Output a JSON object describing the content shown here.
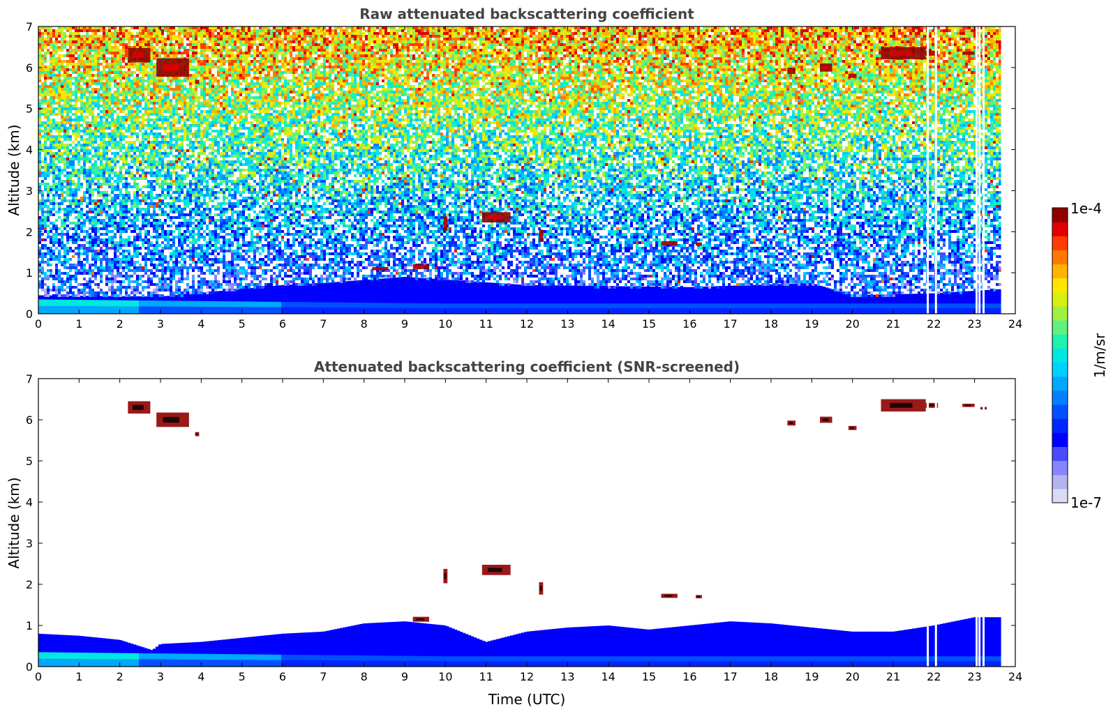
{
  "colorbar": {
    "label": "1/m/sr",
    "max_label": "1e-4",
    "min_label": "1e-7",
    "colors": [
      "#dadaf6",
      "#b3b3ee",
      "#8686ff",
      "#4a4aff",
      "#0000ff",
      "#0026ff",
      "#0050ff",
      "#0080ff",
      "#00a8ff",
      "#00d0ff",
      "#00e8e0",
      "#20f0b0",
      "#60f080",
      "#a0f040",
      "#d8f010",
      "#ffe600",
      "#ffb400",
      "#ff7800",
      "#ff3c00",
      "#e00000",
      "#900000"
    ]
  },
  "chart_data": [
    {
      "type": "heatmap",
      "title": "Raw attenuated backscattering coefficient",
      "xlabel": "",
      "ylabel": "Altitude (km)",
      "xlim": [
        0,
        24
      ],
      "ylim": [
        0,
        7
      ],
      "xticks": [
        "0",
        "1",
        "2",
        "3",
        "4",
        "5",
        "6",
        "7",
        "8",
        "9",
        "10",
        "11",
        "12",
        "13",
        "14",
        "15",
        "16",
        "17",
        "18",
        "19",
        "20",
        "21",
        "22",
        "23",
        "24"
      ],
      "yticks": [
        "0",
        "1",
        "2",
        "3",
        "4",
        "5",
        "6",
        "7"
      ],
      "data_end_time": 23.65,
      "boundary_layer_top_km": [
        [
          0,
          0.45
        ],
        [
          3,
          0.42
        ],
        [
          6,
          0.7
        ],
        [
          7,
          0.75
        ],
        [
          9,
          0.9
        ],
        [
          12,
          0.7
        ],
        [
          16,
          0.65
        ],
        [
          19,
          0.75
        ],
        [
          20,
          0.45
        ],
        [
          22,
          0.5
        ],
        [
          23.65,
          0.6
        ]
      ],
      "cloud_layers": [
        {
          "t0": 2.2,
          "t1": 2.75,
          "alt": 6.3,
          "thick": 0.35
        },
        {
          "t0": 2.9,
          "t1": 3.7,
          "alt": 6.0,
          "thick": 0.45
        },
        {
          "t0": 3.85,
          "t1": 3.95,
          "alt": 5.65,
          "thick": 0.1
        },
        {
          "t0": 8.2,
          "t1": 8.6,
          "alt": 1.1,
          "thick": 0.08
        },
        {
          "t0": 9.2,
          "t1": 9.6,
          "alt": 1.15,
          "thick": 0.12
        },
        {
          "t0": 9.95,
          "t1": 10.05,
          "alt": 2.2,
          "thick": 0.35
        },
        {
          "t0": 10.9,
          "t1": 11.6,
          "alt": 2.35,
          "thick": 0.25
        },
        {
          "t0": 12.3,
          "t1": 12.4,
          "alt": 1.9,
          "thick": 0.3
        },
        {
          "t0": 15.3,
          "t1": 15.7,
          "alt": 1.72,
          "thick": 0.1
        },
        {
          "t0": 16.15,
          "t1": 16.3,
          "alt": 1.7,
          "thick": 0.08
        },
        {
          "t0": 18.4,
          "t1": 18.6,
          "alt": 5.92,
          "thick": 0.15
        },
        {
          "t0": 19.2,
          "t1": 19.5,
          "alt": 6.0,
          "thick": 0.2
        },
        {
          "t0": 19.9,
          "t1": 20.1,
          "alt": 5.8,
          "thick": 0.1
        },
        {
          "t0": 20.7,
          "t1": 21.8,
          "alt": 6.35,
          "thick": 0.3
        },
        {
          "t0": 21.8,
          "t1": 22.1,
          "alt": 6.35,
          "thick": 0.12
        },
        {
          "t0": 22.7,
          "t1": 23.0,
          "alt": 6.35,
          "thick": 0.08
        },
        {
          "t0": 23.1,
          "t1": 23.3,
          "alt": 6.28,
          "thick": 0.06
        }
      ],
      "gaps": [
        21.85,
        22.05,
        23.05,
        23.12,
        23.22
      ]
    },
    {
      "type": "heatmap",
      "title": "Attenuated backscattering coefficient (SNR-screened)",
      "xlabel": "Time (UTC)",
      "ylabel": "Altitude (km)",
      "xlim": [
        0,
        24
      ],
      "ylim": [
        0,
        7
      ],
      "xticks": [
        "0",
        "1",
        "2",
        "3",
        "4",
        "5",
        "6",
        "7",
        "8",
        "9",
        "10",
        "11",
        "12",
        "13",
        "14",
        "15",
        "16",
        "17",
        "18",
        "19",
        "20",
        "21",
        "22",
        "23",
        "24"
      ],
      "yticks": [
        "0",
        "1",
        "2",
        "3",
        "4",
        "5",
        "6",
        "7"
      ],
      "data_end_time": 23.65,
      "screened_top_km": [
        [
          0,
          0.8
        ],
        [
          1,
          0.75
        ],
        [
          2,
          0.65
        ],
        [
          2.8,
          0.4
        ],
        [
          3,
          0.55
        ],
        [
          4,
          0.6
        ],
        [
          5,
          0.7
        ],
        [
          6,
          0.8
        ],
        [
          7,
          0.85
        ],
        [
          8,
          1.05
        ],
        [
          9,
          1.1
        ],
        [
          10,
          1.0
        ],
        [
          11,
          0.6
        ],
        [
          12,
          0.85
        ],
        [
          13,
          0.95
        ],
        [
          14,
          1.0
        ],
        [
          15,
          0.9
        ],
        [
          16,
          1.0
        ],
        [
          17,
          1.1
        ],
        [
          18,
          1.05
        ],
        [
          19,
          0.95
        ],
        [
          20,
          0.85
        ],
        [
          21,
          0.85
        ],
        [
          22,
          1.0
        ],
        [
          23,
          1.2
        ],
        [
          23.65,
          1.2
        ]
      ],
      "cloud_layers": [
        {
          "t0": 2.2,
          "t1": 2.75,
          "alt": 6.3,
          "thick": 0.3
        },
        {
          "t0": 2.9,
          "t1": 3.7,
          "alt": 6.0,
          "thick": 0.35
        },
        {
          "t0": 3.85,
          "t1": 3.95,
          "alt": 5.65,
          "thick": 0.1
        },
        {
          "t0": 9.2,
          "t1": 9.6,
          "alt": 1.15,
          "thick": 0.12
        },
        {
          "t0": 9.95,
          "t1": 10.05,
          "alt": 2.2,
          "thick": 0.35
        },
        {
          "t0": 10.9,
          "t1": 11.6,
          "alt": 2.35,
          "thick": 0.25
        },
        {
          "t0": 12.3,
          "t1": 12.4,
          "alt": 1.9,
          "thick": 0.3
        },
        {
          "t0": 15.3,
          "t1": 15.7,
          "alt": 1.72,
          "thick": 0.1
        },
        {
          "t0": 16.15,
          "t1": 16.3,
          "alt": 1.7,
          "thick": 0.08
        },
        {
          "t0": 18.4,
          "t1": 18.6,
          "alt": 5.92,
          "thick": 0.12
        },
        {
          "t0": 19.2,
          "t1": 19.5,
          "alt": 6.0,
          "thick": 0.15
        },
        {
          "t0": 19.9,
          "t1": 20.1,
          "alt": 5.8,
          "thick": 0.1
        },
        {
          "t0": 20.7,
          "t1": 21.8,
          "alt": 6.35,
          "thick": 0.3
        },
        {
          "t0": 21.8,
          "t1": 22.1,
          "alt": 6.35,
          "thick": 0.12
        },
        {
          "t0": 22.7,
          "t1": 23.0,
          "alt": 6.35,
          "thick": 0.08
        },
        {
          "t0": 23.1,
          "t1": 23.3,
          "alt": 6.28,
          "thick": 0.06
        }
      ],
      "gaps": [
        21.85,
        22.05,
        23.05,
        23.12,
        23.22
      ]
    }
  ]
}
